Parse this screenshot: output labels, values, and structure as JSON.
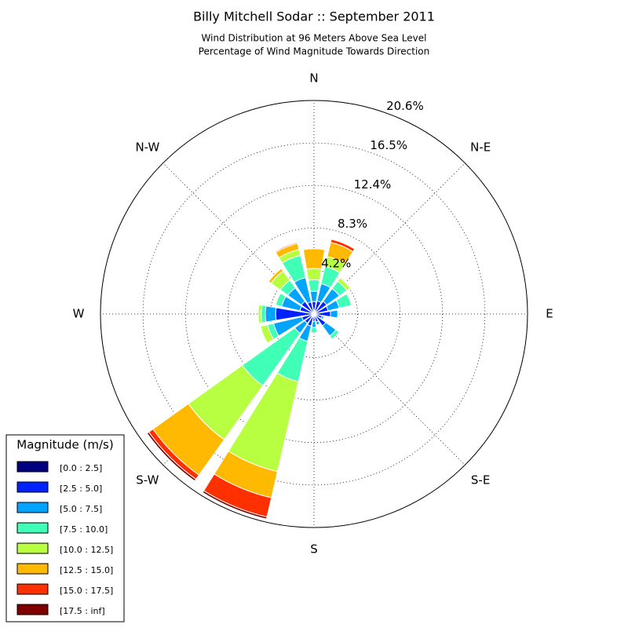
{
  "chart_data": {
    "type": "windrose",
    "title": "Billy Mitchell Sodar :: September 2011",
    "subtitle": [
      "Wind Distribution at 96 Meters Above Sea Level",
      "Percentage of Wind Magnitude Towards Direction"
    ],
    "direction_labels": [
      {
        "value": 0,
        "label": "N"
      },
      {
        "value": 45,
        "label": "N-E"
      },
      {
        "value": 90,
        "label": "E"
      },
      {
        "value": 135,
        "label": "S-E"
      },
      {
        "value": 180,
        "label": "S"
      },
      {
        "value": 225,
        "label": "S-W"
      },
      {
        "value": 270,
        "label": "W"
      },
      {
        "value": 315,
        "label": "N-W"
      }
    ],
    "directions": [
      0,
      22.5,
      45,
      67.5,
      90,
      112.5,
      135,
      157.5,
      180,
      202.5,
      225,
      247.5,
      270,
      292.5,
      315,
      337.5
    ],
    "rlim": [
      0,
      20.6
    ],
    "rticks": [
      {
        "value": 4.2,
        "label": "4.2%"
      },
      {
        "value": 8.3,
        "label": "8.3%"
      },
      {
        "value": 12.4,
        "label": "12.4%"
      },
      {
        "value": 16.5,
        "label": "16.5%"
      },
      {
        "value": 20.6,
        "label": "20.6%"
      }
    ],
    "grid": true,
    "legend_title": "Magnitude (m/s)",
    "legend_position": "lower left",
    "series": [
      {
        "name": "[0.0 : 2.5]",
        "color": "#000080",
        "values": [
          0.4,
          0.3,
          0.2,
          0.2,
          0.2,
          0.2,
          0.2,
          0.2,
          0.2,
          0.3,
          0.2,
          0.2,
          0.2,
          0.2,
          0.2,
          0.2
        ]
      },
      {
        "name": "[2.5 : 5.0]",
        "color": "#0022ff",
        "values": [
          0.8,
          1.0,
          1.3,
          1.2,
          1.4,
          0.6,
          1.2,
          0.6,
          0.5,
          0.9,
          0.9,
          1.0,
          3.5,
          1.2,
          1.3,
          1.0
        ]
      },
      {
        "name": "[5.0 : 7.5]",
        "color": "#00a4ff",
        "values": [
          1.0,
          1.7,
          1.5,
          1.1,
          0.7,
          0.2,
          1.2,
          0.3,
          0.6,
          1.5,
          1.2,
          2.8,
          1.0,
          1.8,
          1.6,
          2.4
        ]
      },
      {
        "name": "[7.5 : 10.0]",
        "color": "#40ffb7",
        "values": [
          1.1,
          1.7,
          0.9,
          1.2,
          0.1,
          0,
          0.4,
          0,
          0.5,
          4.0,
          6.2,
          0.6,
          0.4,
          0.6,
          0.9,
          2.2
        ]
      },
      {
        "name": "[10.0 : 12.5]",
        "color": "#b7ff40",
        "values": [
          1.1,
          1.0,
          0.4,
          0.1,
          0,
          0,
          0,
          0,
          0,
          8.9,
          6.4,
          0.7,
          0.3,
          0.1,
          1.1,
          0.6
        ]
      },
      {
        "name": "[12.5 : 15.0]",
        "color": "#ffb900",
        "values": [
          1.9,
          1.4,
          0.1,
          0,
          0,
          0,
          0,
          0,
          0,
          2.6,
          4.2,
          0,
          0,
          0,
          0.3,
          0.6
        ]
      },
      {
        "name": "[15.0 : 17.5]",
        "color": "#ff3000",
        "values": [
          0,
          0.3,
          0,
          0,
          0,
          0,
          0,
          0,
          0,
          1.9,
          0.5,
          0,
          0,
          0,
          0,
          0.1
        ]
      },
      {
        "name": "[17.5 : inf]",
        "color": "#800000",
        "values": [
          0,
          0,
          0,
          0,
          0,
          0,
          0,
          0,
          0,
          0.2,
          0.2,
          0,
          0,
          0,
          0,
          0
        ]
      }
    ]
  }
}
